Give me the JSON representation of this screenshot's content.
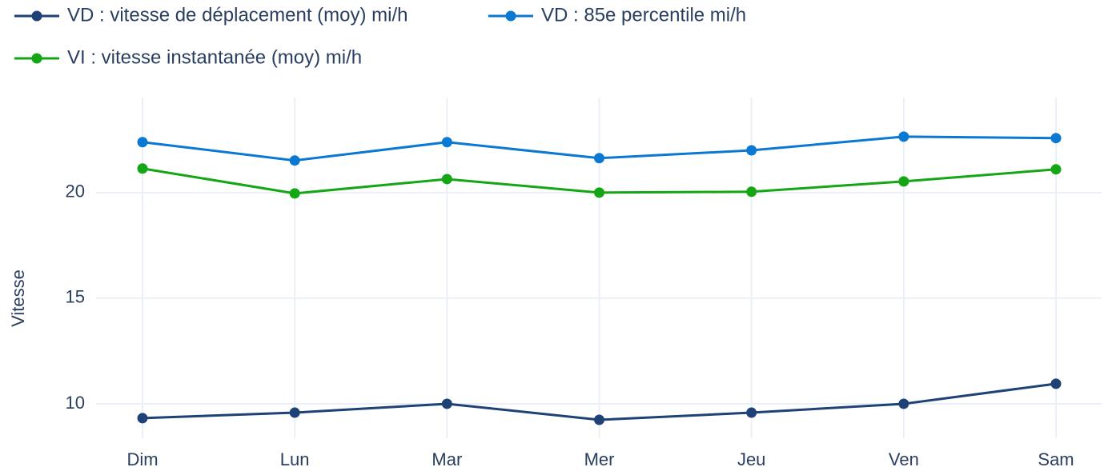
{
  "chart_data": {
    "type": "line",
    "y_label": "Vitesse",
    "categories": [
      "Dim",
      "Lun",
      "Mar",
      "Mer",
      "Jeu",
      "Ven",
      "Sam"
    ],
    "series": [
      {
        "name": "VD : vitesse de déplacement (moy) mi/h",
        "color": "#1e4176",
        "values": [
          9.32,
          9.58,
          10.0,
          9.24,
          9.58,
          10.0,
          10.95
        ]
      },
      {
        "name": "VD : 85e percentile mi/h",
        "color": "#0b78d2",
        "values": [
          22.39,
          21.52,
          22.39,
          21.63,
          22.0,
          22.65,
          22.58
        ]
      },
      {
        "name": "VI : vitesse instantanée (moy) mi/h",
        "color": "#14a614",
        "values": [
          21.14,
          19.96,
          20.64,
          20.0,
          20.04,
          20.53,
          21.1
        ]
      }
    ],
    "ylim": [
      8.37,
      24.5
    ],
    "yticks": [
      10,
      15,
      20
    ],
    "grid": true
  }
}
